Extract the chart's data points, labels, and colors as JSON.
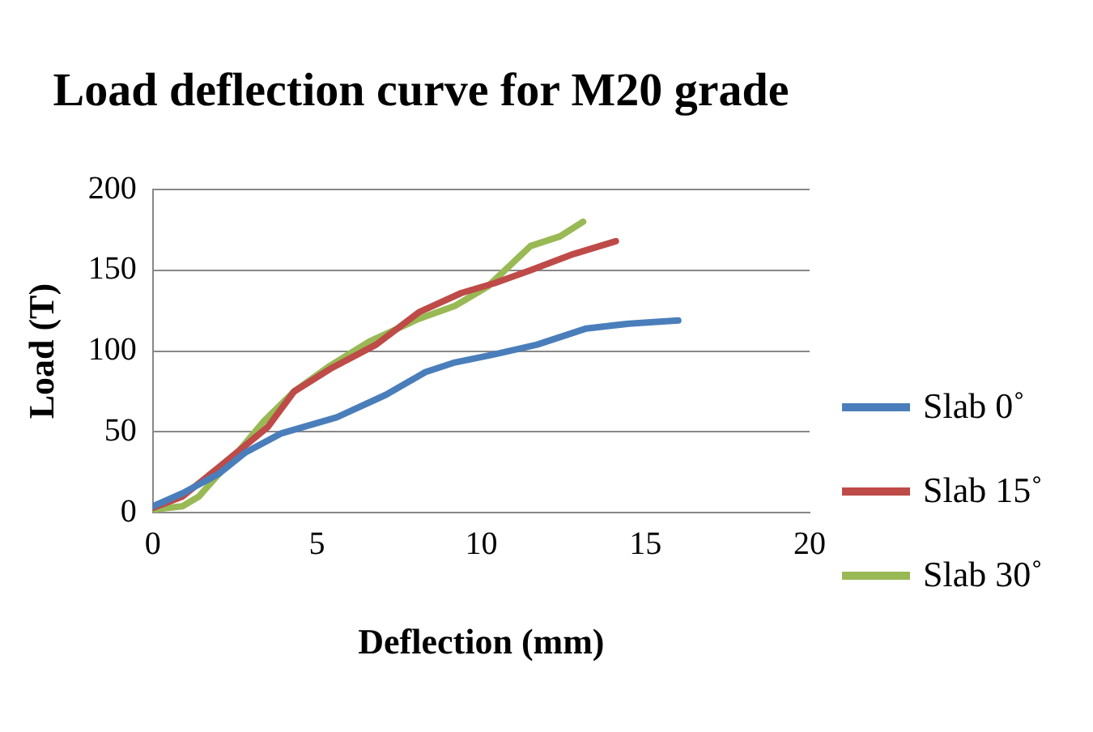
{
  "chart_data": {
    "type": "line",
    "title": "Load deflection curve for M20 grade",
    "xlabel": "Deflection (mm)",
    "ylabel": "Load (T)",
    "xlim": [
      0,
      20
    ],
    "xticks": [
      0,
      5,
      10,
      15,
      20
    ],
    "ylim": [
      0,
      200
    ],
    "yticks": [
      0,
      50,
      100,
      150,
      200
    ],
    "grid": "y",
    "legend": "right",
    "marker": "none",
    "line_style": "solid",
    "series": [
      {
        "name": "Slab 0˚",
        "color": "#4a7ebb",
        "x": [
          0,
          0.9,
          2,
          2.8,
          3.9,
          5.6,
          7.1,
          8.3,
          9.2,
          10.4,
          11.7,
          13.2,
          14.5,
          16
        ],
        "values": [
          4,
          12,
          24,
          37,
          49,
          59,
          73,
          87,
          93,
          98,
          104,
          114,
          117,
          119
        ]
      },
      {
        "name": "Slab 15˚",
        "color": "#be4b48",
        "x": [
          0,
          0.9,
          2,
          3.5,
          4.3,
          5.4,
          6.8,
          8.1,
          9.4,
          10.4,
          11.5,
          12.8,
          14.1
        ],
        "values": [
          3,
          10,
          28,
          53,
          75,
          89,
          104,
          124,
          136,
          142,
          150,
          160,
          168
        ]
      },
      {
        "name": "Slab 30˚",
        "color": "#98b954",
        "x": [
          0,
          0.9,
          1.4,
          2.4,
          3.4,
          4.3,
          5.4,
          6.6,
          8.1,
          9.2,
          10.2,
          11.5,
          12.4,
          13.1
        ],
        "values": [
          2,
          4,
          10,
          33,
          57,
          75,
          91,
          106,
          120,
          128,
          140,
          165,
          171,
          180
        ]
      }
    ]
  }
}
